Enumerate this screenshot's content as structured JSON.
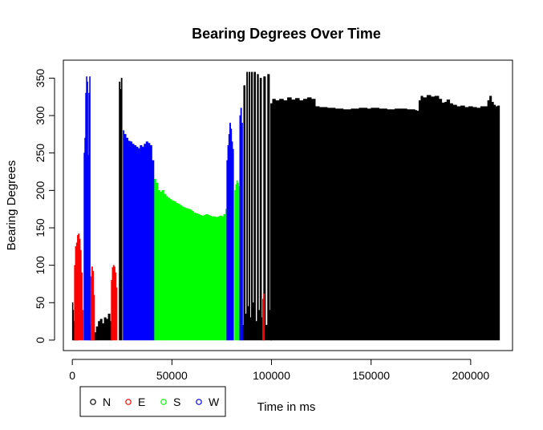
{
  "chart_data": {
    "type": "bar",
    "title": "Bearing Degrees Over Time",
    "xlabel": "Time in ms",
    "ylabel": "Bearing Degrees",
    "xlim": [
      -4500,
      221000
    ],
    "ylim": [
      -14,
      374
    ],
    "x_ticks": [
      0,
      50000,
      100000,
      150000,
      200000
    ],
    "x_tick_labels": [
      "0",
      "50000",
      "100000",
      "150000",
      "200000"
    ],
    "y_ticks": [
      0,
      50,
      100,
      150,
      200,
      250,
      300,
      350
    ],
    "y_tick_labels": [
      "0",
      "50",
      "100",
      "150",
      "200",
      "250",
      "300",
      "350"
    ],
    "grid": false,
    "legend": {
      "position": "bottom-left",
      "entries": [
        {
          "label": "N",
          "color": "#000000"
        },
        {
          "label": "E",
          "color": "#ff0000"
        },
        {
          "label": "S",
          "color": "#00ff00"
        },
        {
          "label": "W",
          "color": "#0000ff"
        }
      ]
    },
    "series": [
      {
        "label": "N",
        "color": "#000000",
        "blocks": [
          {
            "x": [
              0,
              300,
              600,
              900,
              1500,
              2200
            ],
            "y": [
              50,
              40,
              25,
              10,
              5,
              2
            ]
          },
          {
            "x": [
              9000,
              10500
            ],
            "y": [
              20,
              10
            ]
          },
          {
            "x": [
              12000,
              13000,
              14000,
              15000,
              16000,
              17000,
              18000,
              19000,
              19500
            ],
            "y": [
              18,
              25,
              28,
              22,
              30,
              28,
              35,
              25,
              15
            ]
          },
          {
            "x": [
              23500,
              24000,
              24500
            ],
            "y": [
              345,
              335,
              350
            ]
          },
          {
            "x": [
              85500,
              86000,
              86800,
              87500,
              88000,
              88600,
              89200,
              89800,
              90500,
              91200,
              92000,
              92800,
              93500,
              94200,
              95000,
              96000,
              97000,
              98000,
              99000
            ],
            "y": [
              20,
              340,
              35,
              358,
              45,
              358,
              30,
              358,
              50,
              358,
              25,
              355,
              40,
              350,
              30,
              352,
              20,
              355,
              40
            ]
          },
          {
            "x": [
              99500,
              100500,
              102000,
              104000,
              106000,
              108000,
              110000,
              112000,
              114000,
              116000,
              118000,
              120000,
              122000,
              124000,
              126000,
              128000,
              130000,
              132000,
              134000,
              136000,
              138000,
              140000,
              142000,
              144000,
              146000,
              148000,
              150000,
              152000,
              154000,
              156000,
              158000,
              160000,
              162000,
              164000,
              166000,
              168000,
              170000,
              172000,
              173000,
              174000,
              175000,
              176000,
              178000,
              180000,
              182000,
              184000,
              185500,
              187000,
              188000,
              189500,
              191000,
              193000,
              195000,
              197000,
              199000,
              201000,
              203000,
              205000,
              207000,
              208500,
              209500,
              210500,
              211500,
              212500,
              213500
            ],
            "y": [
              316,
              322,
              320,
              322,
              320,
              324,
              321,
              323,
              320,
              322,
              324,
              322,
              312,
              311,
              311,
              310,
              310,
              309,
              309,
              308,
              308,
              309,
              309,
              310,
              310,
              309,
              310,
              310,
              309,
              309,
              308,
              308,
              309,
              309,
              309,
              308,
              308,
              307,
              306,
              320,
              326,
              324,
              327,
              325,
              326,
              322,
              317,
              318,
              321,
              316,
              314,
              312,
              313,
              311,
              312,
              311,
              310,
              312,
              312,
              320,
              326,
              318,
              314,
              312,
              313
            ]
          }
        ]
      },
      {
        "label": "E",
        "color": "#ff0000",
        "blocks": [
          {
            "x": [
              1000,
              1500,
              2000,
              2500,
              3000,
              3500,
              4000,
              4500,
              5000
            ],
            "y": [
              100,
              125,
              130,
              140,
              142,
              135,
              120,
              90,
              40
            ]
          },
          {
            "x": [
              9200,
              9700,
              10200,
              10700
            ],
            "y": [
              85,
              98,
              92,
              60
            ]
          },
          {
            "x": [
              19500,
              20000,
              20500,
              21000,
              21500,
              22000
            ],
            "y": [
              80,
              97,
              100,
              98,
              90,
              70
            ]
          },
          {
            "x": [
              95500,
              96000
            ],
            "y": [
              55,
              62
            ]
          }
        ]
      },
      {
        "label": "S",
        "color": "#00ff00",
        "blocks": [
          {
            "x": [
              41000,
              42000,
              43000,
              44000,
              45000,
              46000,
              47000,
              48000,
              49000,
              50000,
              51000,
              52000,
              53000,
              54000,
              55000,
              56000,
              57000,
              58000,
              59000,
              60000,
              61000,
              62000,
              63000,
              64000,
              65000,
              66000,
              67000,
              68000,
              69000,
              70000,
              71000,
              72000,
              73000,
              74000,
              75000,
              76000,
              77000
            ],
            "y": [
              215,
              210,
              200,
              198,
              200,
              195,
              192,
              190,
              188,
              186,
              185,
              183,
              182,
              180,
              178,
              177,
              176,
              175,
              174,
              172,
              170,
              169,
              168,
              167,
              166,
              167,
              168,
              167,
              166,
              165,
              165,
              164,
              165,
              166,
              165,
              168,
              175
            ]
          },
          {
            "x": [
              81500,
              82000,
              82500,
              83000,
              83500,
              84000
            ],
            "y": [
              200,
              208,
              213,
              210,
              205,
              198
            ]
          }
        ]
      },
      {
        "label": "W",
        "color": "#0000ff",
        "blocks": [
          {
            "x": [
              5800,
              6200,
              6600,
              7000,
              7400,
              7800
            ],
            "y": [
              250,
              270,
              330,
              352,
              345,
              247
            ]
          },
          {
            "x": [
              8200,
              8600
            ],
            "y": [
              330,
              352
            ]
          },
          {
            "x": [
              25500,
              26000,
              27000,
              28000,
              29000,
              30000,
              31000,
              32000,
              33000,
              34000,
              35000,
              36000,
              37000,
              38000,
              39000,
              40000
            ],
            "y": [
              280,
              275,
              270,
              266,
              265,
              262,
              260,
              258,
              256,
              260,
              258,
              262,
              265,
              263,
              260,
              240
            ]
          },
          {
            "x": [
              77500,
              78000,
              78500,
              79000,
              79500,
              80000,
              80500
            ],
            "y": [
              240,
              260,
              275,
              290,
              282,
              265,
              255
            ]
          },
          {
            "x": [
              84000,
              84500,
              85000
            ],
            "y": [
              300,
              310,
              290
            ]
          }
        ]
      }
    ]
  }
}
